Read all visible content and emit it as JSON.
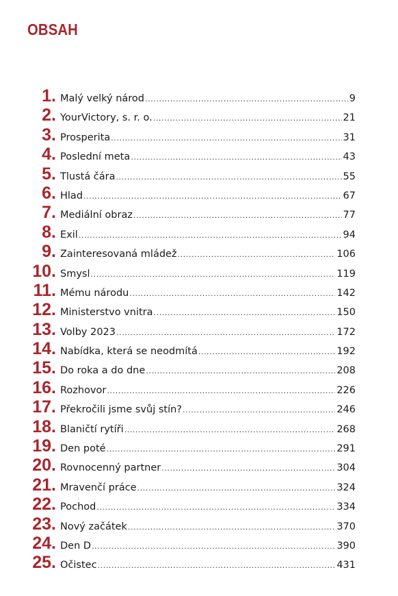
{
  "title": "OBSAH",
  "accent_color": "#a8262c",
  "entries": [
    {
      "num": "1.",
      "title": "Malý velký národ",
      "page": "9"
    },
    {
      "num": "2.",
      "title": "YourVictory, s. r. o.",
      "page": "21"
    },
    {
      "num": "3.",
      "title": "Prosperita",
      "page": "31"
    },
    {
      "num": "4.",
      "title": "Poslední meta",
      "page": "43"
    },
    {
      "num": "5.",
      "title": "Tlustá čára",
      "page": "55"
    },
    {
      "num": "6.",
      "title": "Hlad",
      "page": "67"
    },
    {
      "num": "7.",
      "title": "Mediální obraz",
      "page": "77"
    },
    {
      "num": "8.",
      "title": "Exil",
      "page": "94"
    },
    {
      "num": "9.",
      "title": "Zainteresovaná mládež",
      "page": "106"
    },
    {
      "num": "10.",
      "title": "Smysl",
      "page": "119"
    },
    {
      "num": "11.",
      "title": "Mému národu",
      "page": "142"
    },
    {
      "num": "12.",
      "title": "Ministerstvo vnitra",
      "page": "150"
    },
    {
      "num": "13.",
      "title": "Volby 2023",
      "page": "172"
    },
    {
      "num": "14.",
      "title": "Nabídka, která se neodmítá",
      "page": "192"
    },
    {
      "num": "15.",
      "title": "Do roka a do dne",
      "page": "208"
    },
    {
      "num": "16.",
      "title": "Rozhovor",
      "page": "226"
    },
    {
      "num": "17.",
      "title": "Překročili jsme svůj stín?",
      "page": "246"
    },
    {
      "num": "18.",
      "title": "Blaničtí rytíři",
      "page": "268"
    },
    {
      "num": "19.",
      "title": "Den poté",
      "page": "291"
    },
    {
      "num": "20.",
      "title": "Rovnocenný partner",
      "page": "304"
    },
    {
      "num": "21.",
      "title": "Mravenčí práce",
      "page": "324"
    },
    {
      "num": "22.",
      "title": "Pochod",
      "page": "334"
    },
    {
      "num": "23.",
      "title": "Nový začátek",
      "page": "370"
    },
    {
      "num": "24.",
      "title": "Den D",
      "page": "390"
    },
    {
      "num": "25.",
      "title": "Očistec",
      "page": "431"
    }
  ]
}
